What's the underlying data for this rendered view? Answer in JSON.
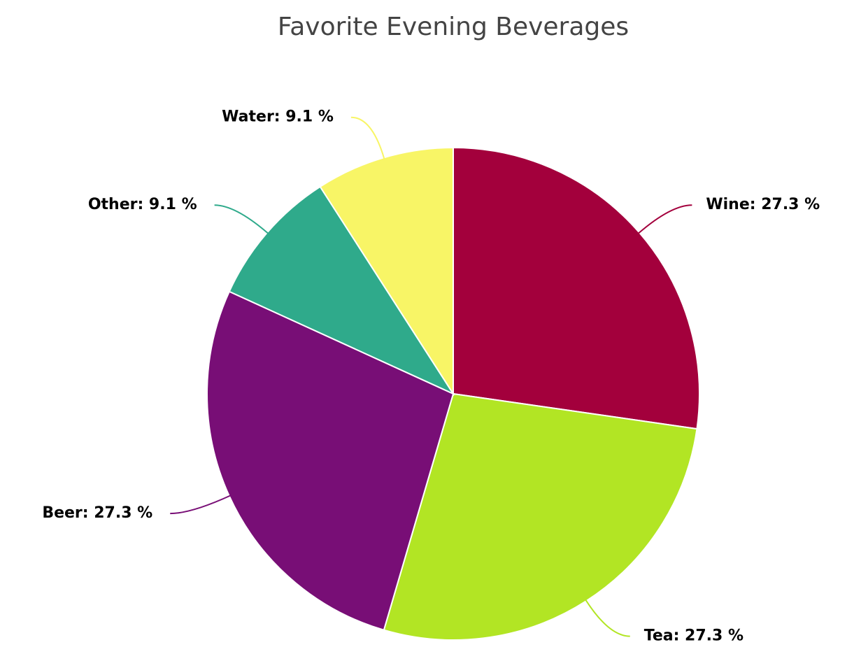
{
  "chart_data": {
    "type": "pie",
    "title": "Favorite Evening Beverages",
    "values": [
      27.3,
      27.3,
      27.3,
      9.1,
      9.1
    ],
    "value_labels": [
      "Wine: 27.3 %",
      "Tea: 27.3 %",
      "Beer: 27.3 %",
      "Other: 9.1 %",
      "Water: 9.1 %"
    ],
    "colors": [
      "#a3003c",
      "#b2e524",
      "#780e76",
      "#2faa8b",
      "#f8f566"
    ]
  }
}
